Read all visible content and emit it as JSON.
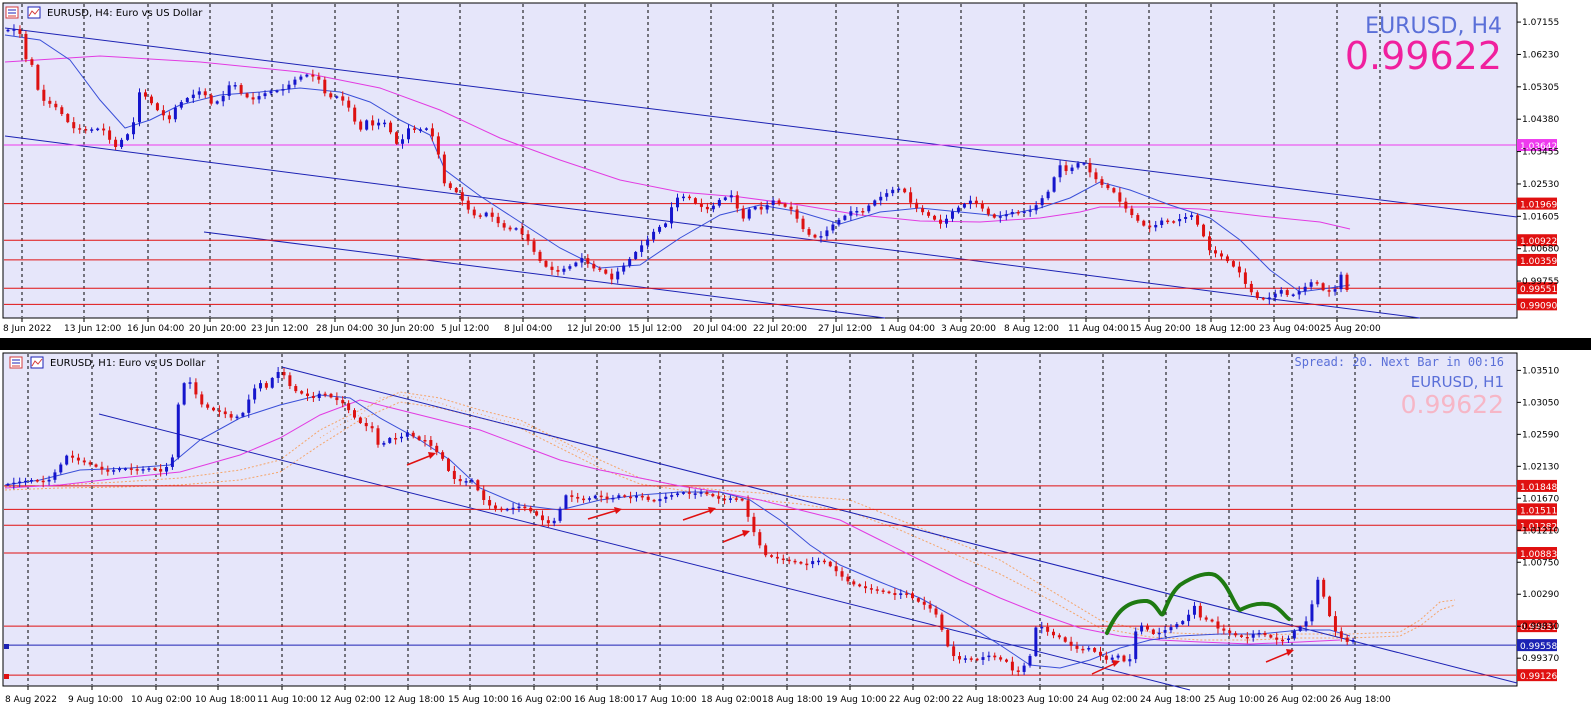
{
  "colors": {
    "background": "#E6E6FA",
    "bull": "#1515CC",
    "bear": "#DD1111",
    "channel": "#1C22B4",
    "ma_magenta": "#E23BE2",
    "ma_blue": "#3A4FD8",
    "level_red": "#E01010",
    "level_magenta": "#EE3BEE",
    "cloud": "#F5A56A",
    "title_blue": "#5A6FD8",
    "price_magenta": "#F0209E",
    "price_pink": "#F6B6C6",
    "curve_green": "#1E7A12"
  },
  "top_chart": {
    "header": "EURUSD, H4:  Euro vs US Dollar",
    "big_symbol": "EURUSD, H4",
    "big_price": "0.99622",
    "y_range": [
      0.987,
      1.077
    ],
    "price_ticks": [
      "1.07155",
      "1.06230",
      "1.05305",
      "1.04380",
      "1.03455",
      "1.02530",
      "1.01605",
      "1.00680",
      "0.99755"
    ],
    "levels": [
      {
        "price": "1.03642",
        "color": "magenta"
      },
      {
        "price": "1.01969",
        "color": "red"
      },
      {
        "price": "1.00922",
        "color": "red"
      },
      {
        "price": "1.00359",
        "color": "red"
      },
      {
        "price": "0.99551",
        "color": "red"
      },
      {
        "price": "0.99090",
        "color": "red"
      }
    ],
    "time_labels": [
      "8 Jun 2022",
      "13 Jun 12:00",
      "16 Jun 04:00",
      "20 Jun 20:00",
      "23 Jun 12:00",
      "28 Jun 04:00",
      "30 Jun 20:00",
      "5 Jul 12:00",
      "8 Jul 04:00",
      "12 Jul 20:00",
      "15 Jul 12:00",
      "20 Jul 04:00",
      "22 Jul 20:00",
      "27 Jul 12:00",
      "1 Aug 04:00",
      "3 Aug 20:00",
      "8 Aug 12:00",
      "11 Aug 04:00",
      "15 Aug 20:00",
      "18 Aug 12:00",
      "23 Aug 04:00",
      "25 Aug 20:00"
    ]
  },
  "bottom_chart": {
    "header": "EURUSD, H1:  Euro vs US Dollar",
    "spread_info": "Spread: 20. Next Bar in 00:16",
    "big_symbol": "EURUSD, H1",
    "big_price": "0.99622",
    "y_range": [
      0.9897,
      1.0376
    ],
    "price_ticks": [
      "1.03510",
      "1.03050",
      "1.02590",
      "1.02130",
      "1.01670",
      "1.01210",
      "1.00750",
      "1.00290",
      "0.99830",
      "0.99370"
    ],
    "levels": [
      {
        "price": "1.01848",
        "color": "red"
      },
      {
        "price": "1.01511",
        "color": "red"
      },
      {
        "price": "1.01282",
        "color": "red"
      },
      {
        "price": "1.00883",
        "color": "red"
      },
      {
        "price": "0.99831",
        "color": "red"
      },
      {
        "price": "0.99558",
        "color": "blue"
      },
      {
        "price": "0.99126",
        "color": "red"
      }
    ],
    "time_labels": [
      "8 Aug 2022",
      "9 Aug 10:00",
      "10 Aug 02:00",
      "10 Aug 18:00",
      "11 Aug 10:00",
      "12 Aug 02:00",
      "12 Aug 18:00",
      "15 Aug 10:00",
      "16 Aug 02:00",
      "16 Aug 18:00",
      "17 Aug 10:00",
      "18 Aug 02:00",
      "18 Aug 18:00",
      "19 Aug 10:00",
      "22 Aug 02:00",
      "22 Aug 18:00",
      "23 Aug 10:00",
      "24 Aug 02:00",
      "24 Aug 18:00",
      "25 Aug 10:00",
      "26 Aug 02:00",
      "26 Aug 18:00"
    ]
  }
}
